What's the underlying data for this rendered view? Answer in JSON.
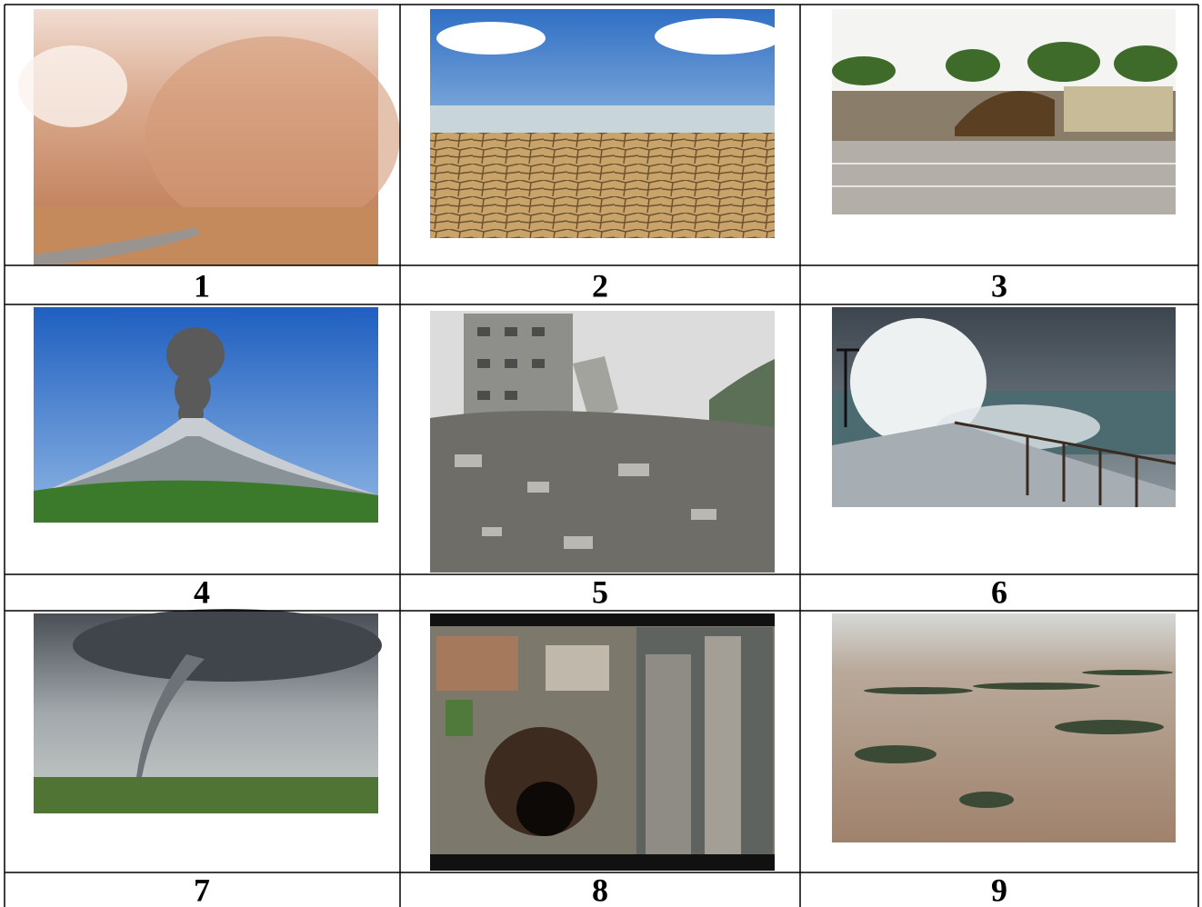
{
  "table": {
    "rows": [
      [
        "1",
        "2",
        "3"
      ],
      [
        "4",
        "5",
        "6"
      ],
      [
        "7",
        "8",
        "9"
      ]
    ]
  }
}
